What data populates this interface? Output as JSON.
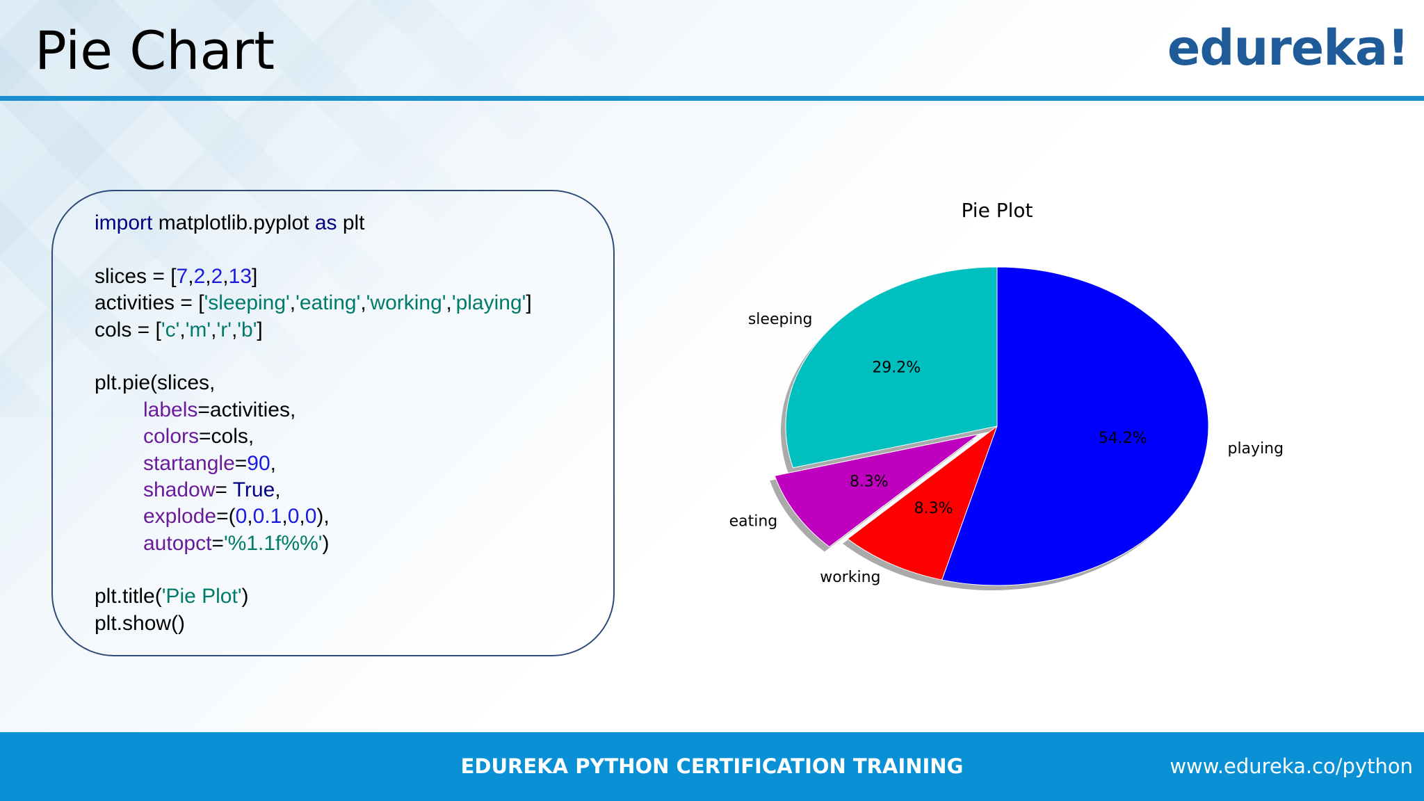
{
  "header": {
    "title": "Pie Chart",
    "logo": "edureka!"
  },
  "code": {
    "blocks": [
      [
        [
          {
            "text": "import",
            "color": "#00007f"
          },
          {
            "text": " matplotlib.pyplot "
          },
          {
            "text": "as",
            "color": "#00007f"
          },
          {
            "text": " plt"
          }
        ]
      ],
      [
        [
          {
            "text": "slices = ["
          },
          {
            "text": "7",
            "color": "#1a1adf"
          },
          {
            "text": ","
          },
          {
            "text": "2",
            "color": "#1a1adf"
          },
          {
            "text": ","
          },
          {
            "text": "2",
            "color": "#1a1adf"
          },
          {
            "text": ","
          },
          {
            "text": "13",
            "color": "#1a1adf"
          },
          {
            "text": "]"
          }
        ],
        [
          {
            "text": "activities = ["
          },
          {
            "text": "'sleeping'",
            "color": "#007a6a"
          },
          {
            "text": ","
          },
          {
            "text": "'eating'",
            "color": "#007a6a"
          },
          {
            "text": ","
          },
          {
            "text": "'working'",
            "color": "#007a6a"
          },
          {
            "text": ","
          },
          {
            "text": "'playing'",
            "color": "#007a6a"
          },
          {
            "text": "]"
          }
        ],
        [
          {
            "text": "cols = ["
          },
          {
            "text": "'c'",
            "color": "#007a6a"
          },
          {
            "text": ","
          },
          {
            "text": "'m'",
            "color": "#007a6a"
          },
          {
            "text": ","
          },
          {
            "text": "'r'",
            "color": "#007a6a"
          },
          {
            "text": ","
          },
          {
            "text": "'b'",
            "color": "#007a6a"
          },
          {
            "text": "]"
          }
        ]
      ],
      [
        [
          {
            "text": "plt.pie(slices,"
          }
        ],
        [
          {
            "text": "\tlabels",
            "color": "#6a1b9a"
          },
          {
            "text": "=activities,"
          }
        ],
        [
          {
            "text": "\tcolors",
            "color": "#6a1b9a"
          },
          {
            "text": "=cols,"
          }
        ],
        [
          {
            "text": "\tstartangle",
            "color": "#6a1b9a"
          },
          {
            "text": "="
          },
          {
            "text": "90",
            "color": "#1a1adf"
          },
          {
            "text": ","
          }
        ],
        [
          {
            "text": "\tshadow",
            "color": "#6a1b9a"
          },
          {
            "text": "= "
          },
          {
            "text": "True",
            "color": "#00007f"
          },
          {
            "text": ","
          }
        ],
        [
          {
            "text": "\texplode",
            "color": "#6a1b9a"
          },
          {
            "text": "=("
          },
          {
            "text": "0",
            "color": "#1a1adf"
          },
          {
            "text": ","
          },
          {
            "text": "0.1",
            "color": "#1a1adf"
          },
          {
            "text": ","
          },
          {
            "text": "0",
            "color": "#1a1adf"
          },
          {
            "text": ","
          },
          {
            "text": "0",
            "color": "#1a1adf"
          },
          {
            "text": "),"
          }
        ],
        [
          {
            "text": "\tautopct",
            "color": "#6a1b9a"
          },
          {
            "text": "="
          },
          {
            "text": "'%1.1f%%'",
            "color": "#007a6a"
          },
          {
            "text": ")"
          }
        ]
      ],
      [
        [
          {
            "text": "plt.title("
          },
          {
            "text": "'Pie Plot'",
            "color": "#007a6a"
          },
          {
            "text": ")"
          }
        ],
        [
          {
            "text": "plt.show()"
          }
        ]
      ]
    ]
  },
  "chart_data": {
    "type": "pie",
    "title": "Pie Plot",
    "categories": [
      "sleeping",
      "eating",
      "working",
      "playing"
    ],
    "values": [
      29.2,
      8.3,
      8.3,
      54.2
    ],
    "value_labels": [
      "29.2%",
      "8.3%",
      "8.3%",
      "54.2%"
    ],
    "colors": [
      "#00bfbf",
      "#bf00bf",
      "#ff0000",
      "#0000ff"
    ],
    "startangle": 90,
    "explode": [
      0,
      0.1,
      0,
      0
    ],
    "shadow": true
  },
  "footer": {
    "title": "EDUREKA PYTHON CERTIFICATION TRAINING",
    "url": "www.edureka.co/python"
  }
}
